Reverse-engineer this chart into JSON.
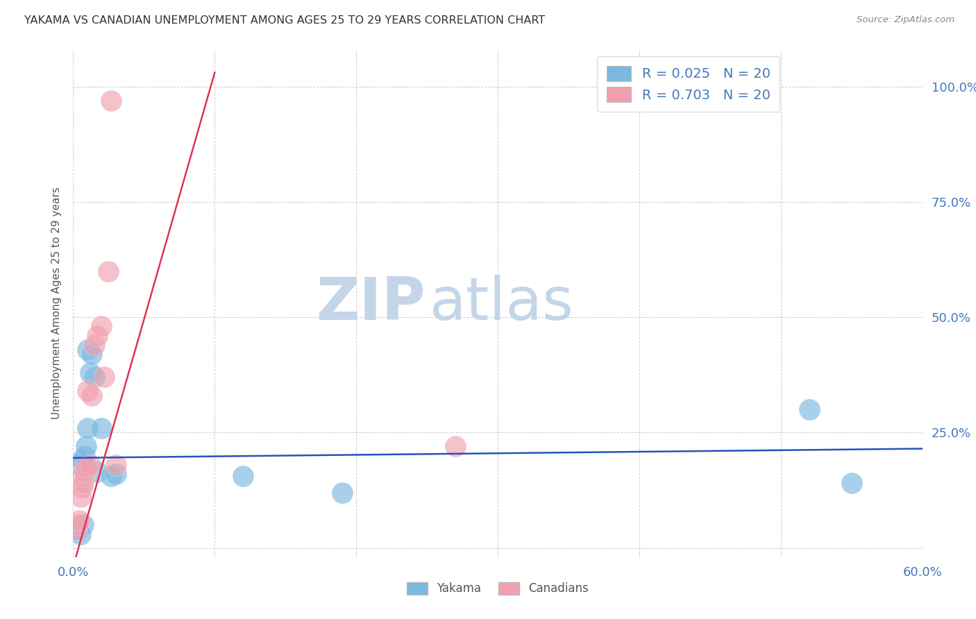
{
  "title": "YAKAMA VS CANADIAN UNEMPLOYMENT AMONG AGES 25 TO 29 YEARS CORRELATION CHART",
  "source": "Source: ZipAtlas.com",
  "ylabel": "Unemployment Among Ages 25 to 29 years",
  "xlim": [
    0.0,
    0.6
  ],
  "ylim": [
    -0.02,
    1.08
  ],
  "xticks": [
    0.0,
    0.1,
    0.2,
    0.3,
    0.4,
    0.5,
    0.6
  ],
  "yticks": [
    0.0,
    0.25,
    0.5,
    0.75,
    1.0
  ],
  "yakama_color": "#7ab8e0",
  "canadian_color": "#f0a0b0",
  "blue_line_color": "#2255bb",
  "pink_line_color": "#dd3355",
  "axis_tick_color": "#4477bb",
  "grid_color": "#cccccc",
  "watermark_zip_color": "#c5d5e8",
  "watermark_atlas_color": "#c5d5e8",
  "legend_color": "#4477bb",
  "title_color": "#333333",
  "source_color": "#888888",
  "yakama_x": [
    0.003,
    0.005,
    0.005,
    0.006,
    0.007,
    0.008,
    0.009,
    0.01,
    0.01,
    0.012,
    0.013,
    0.015,
    0.017,
    0.02,
    0.027,
    0.03,
    0.12,
    0.19,
    0.52,
    0.55
  ],
  "yakama_y": [
    0.04,
    0.03,
    0.18,
    0.19,
    0.05,
    0.2,
    0.22,
    0.26,
    0.43,
    0.38,
    0.42,
    0.37,
    0.165,
    0.26,
    0.155,
    0.16,
    0.155,
    0.12,
    0.3,
    0.14
  ],
  "canadian_x": [
    0.002,
    0.003,
    0.004,
    0.005,
    0.006,
    0.006,
    0.007,
    0.008,
    0.009,
    0.01,
    0.012,
    0.013,
    0.015,
    0.017,
    0.02,
    0.022,
    0.025,
    0.027,
    0.03,
    0.27
  ],
  "canadian_y": [
    0.04,
    0.05,
    0.06,
    0.11,
    0.13,
    0.155,
    0.14,
    0.165,
    0.175,
    0.34,
    0.18,
    0.33,
    0.44,
    0.46,
    0.48,
    0.37,
    0.6,
    0.97,
    0.18,
    0.22
  ],
  "blue_line_x": [
    0.0,
    0.6
  ],
  "blue_line_y": [
    0.195,
    0.215
  ],
  "pink_line_x": [
    0.0,
    0.1
  ],
  "pink_line_y": [
    -0.04,
    1.03
  ]
}
